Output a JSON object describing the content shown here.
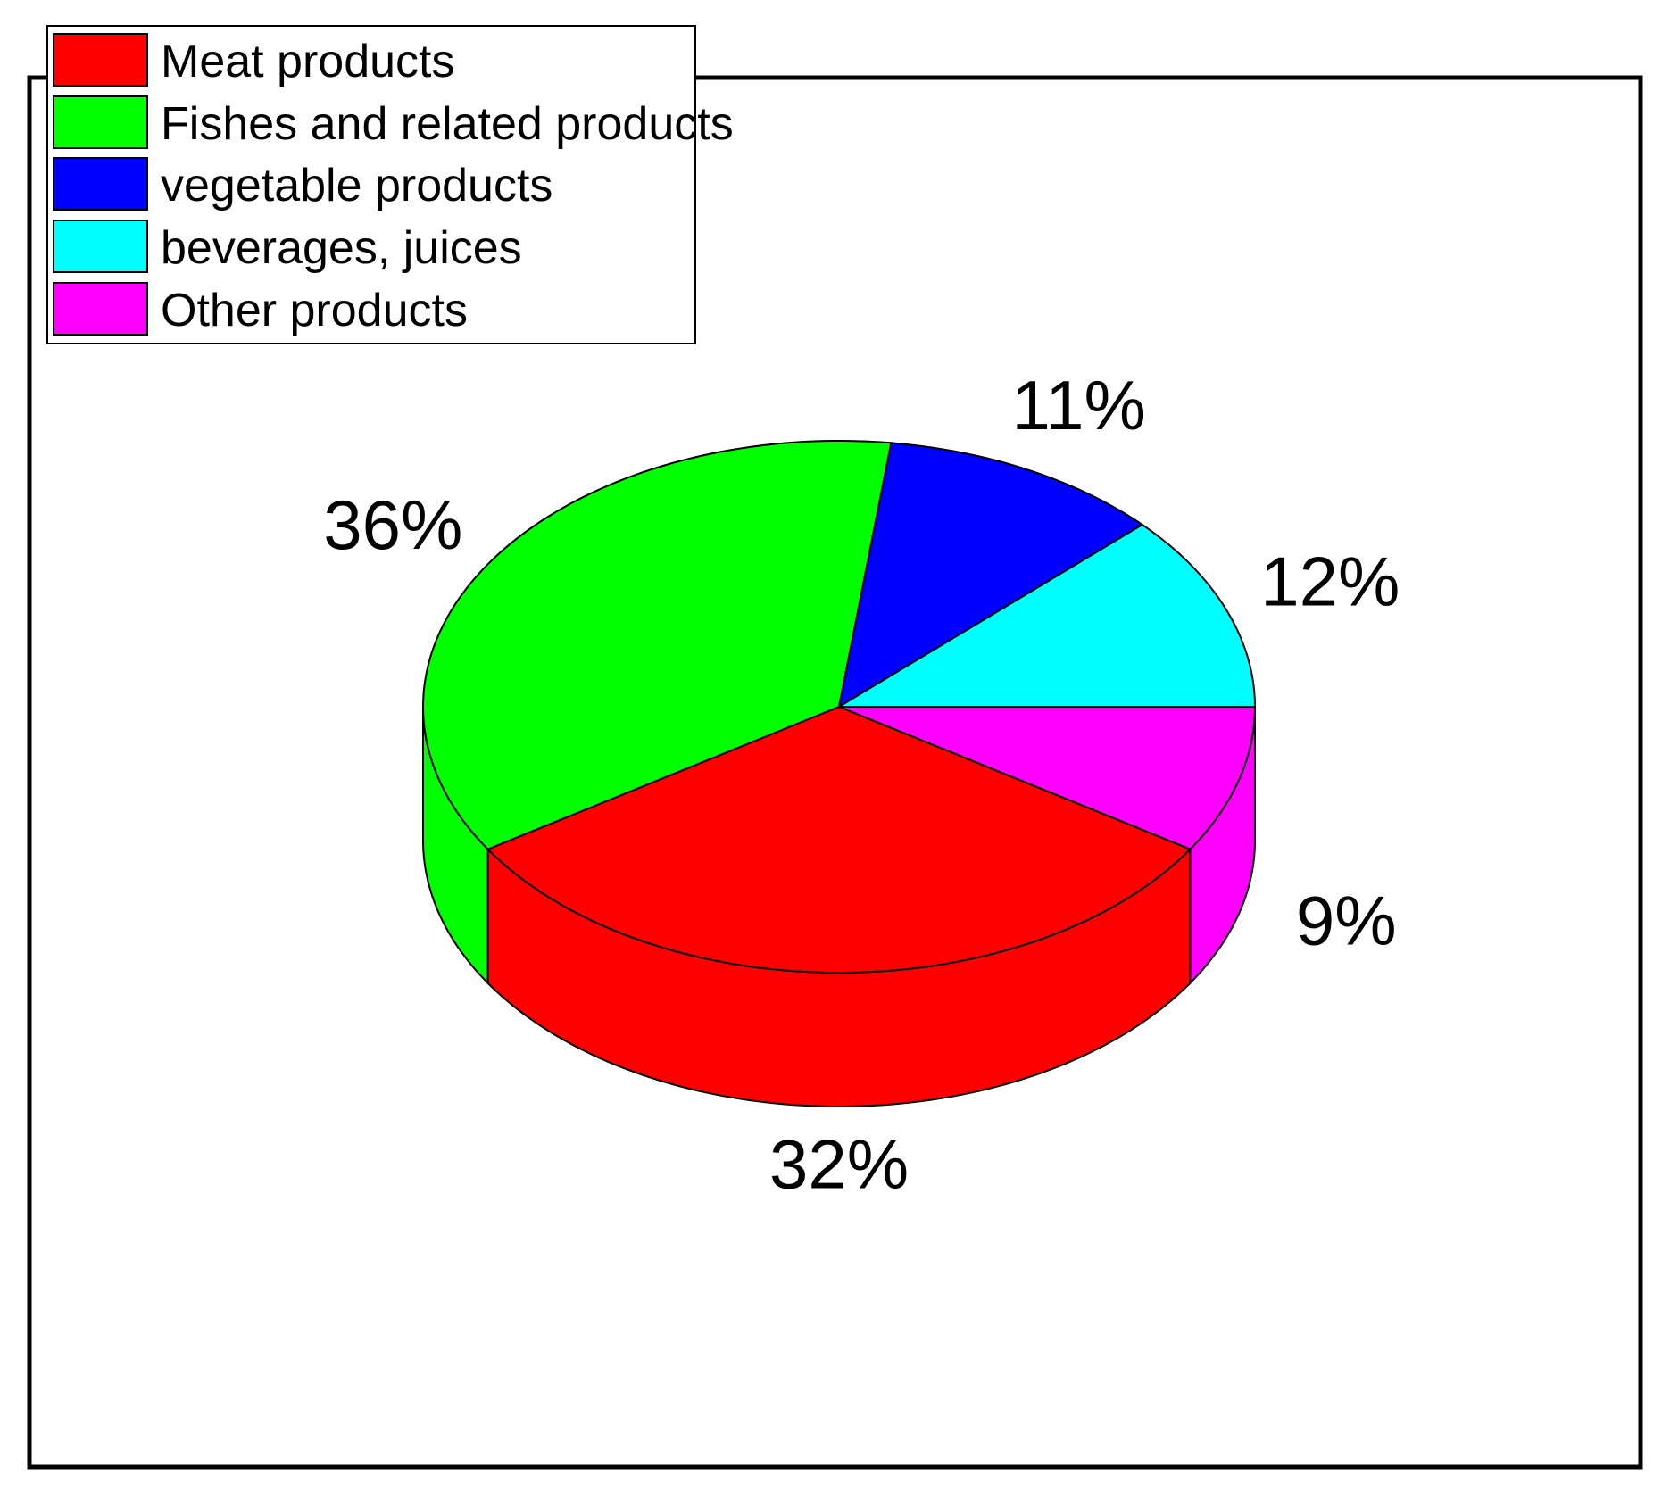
{
  "chart_data": {
    "type": "pie",
    "style": "3d",
    "title": "",
    "legend_position": "top-left",
    "categories": [
      "Meat products",
      "Fishes and related products",
      "vegetable products",
      "beverages, juices",
      "Other products"
    ],
    "values": [
      32,
      36,
      11,
      12,
      9
    ],
    "labels": [
      "32%",
      "36%",
      "11%",
      "12%",
      "9%"
    ],
    "colors": [
      "#ff0000",
      "#00ff00",
      "#0000ff",
      "#00ffff",
      "#ff00ff"
    ]
  }
}
